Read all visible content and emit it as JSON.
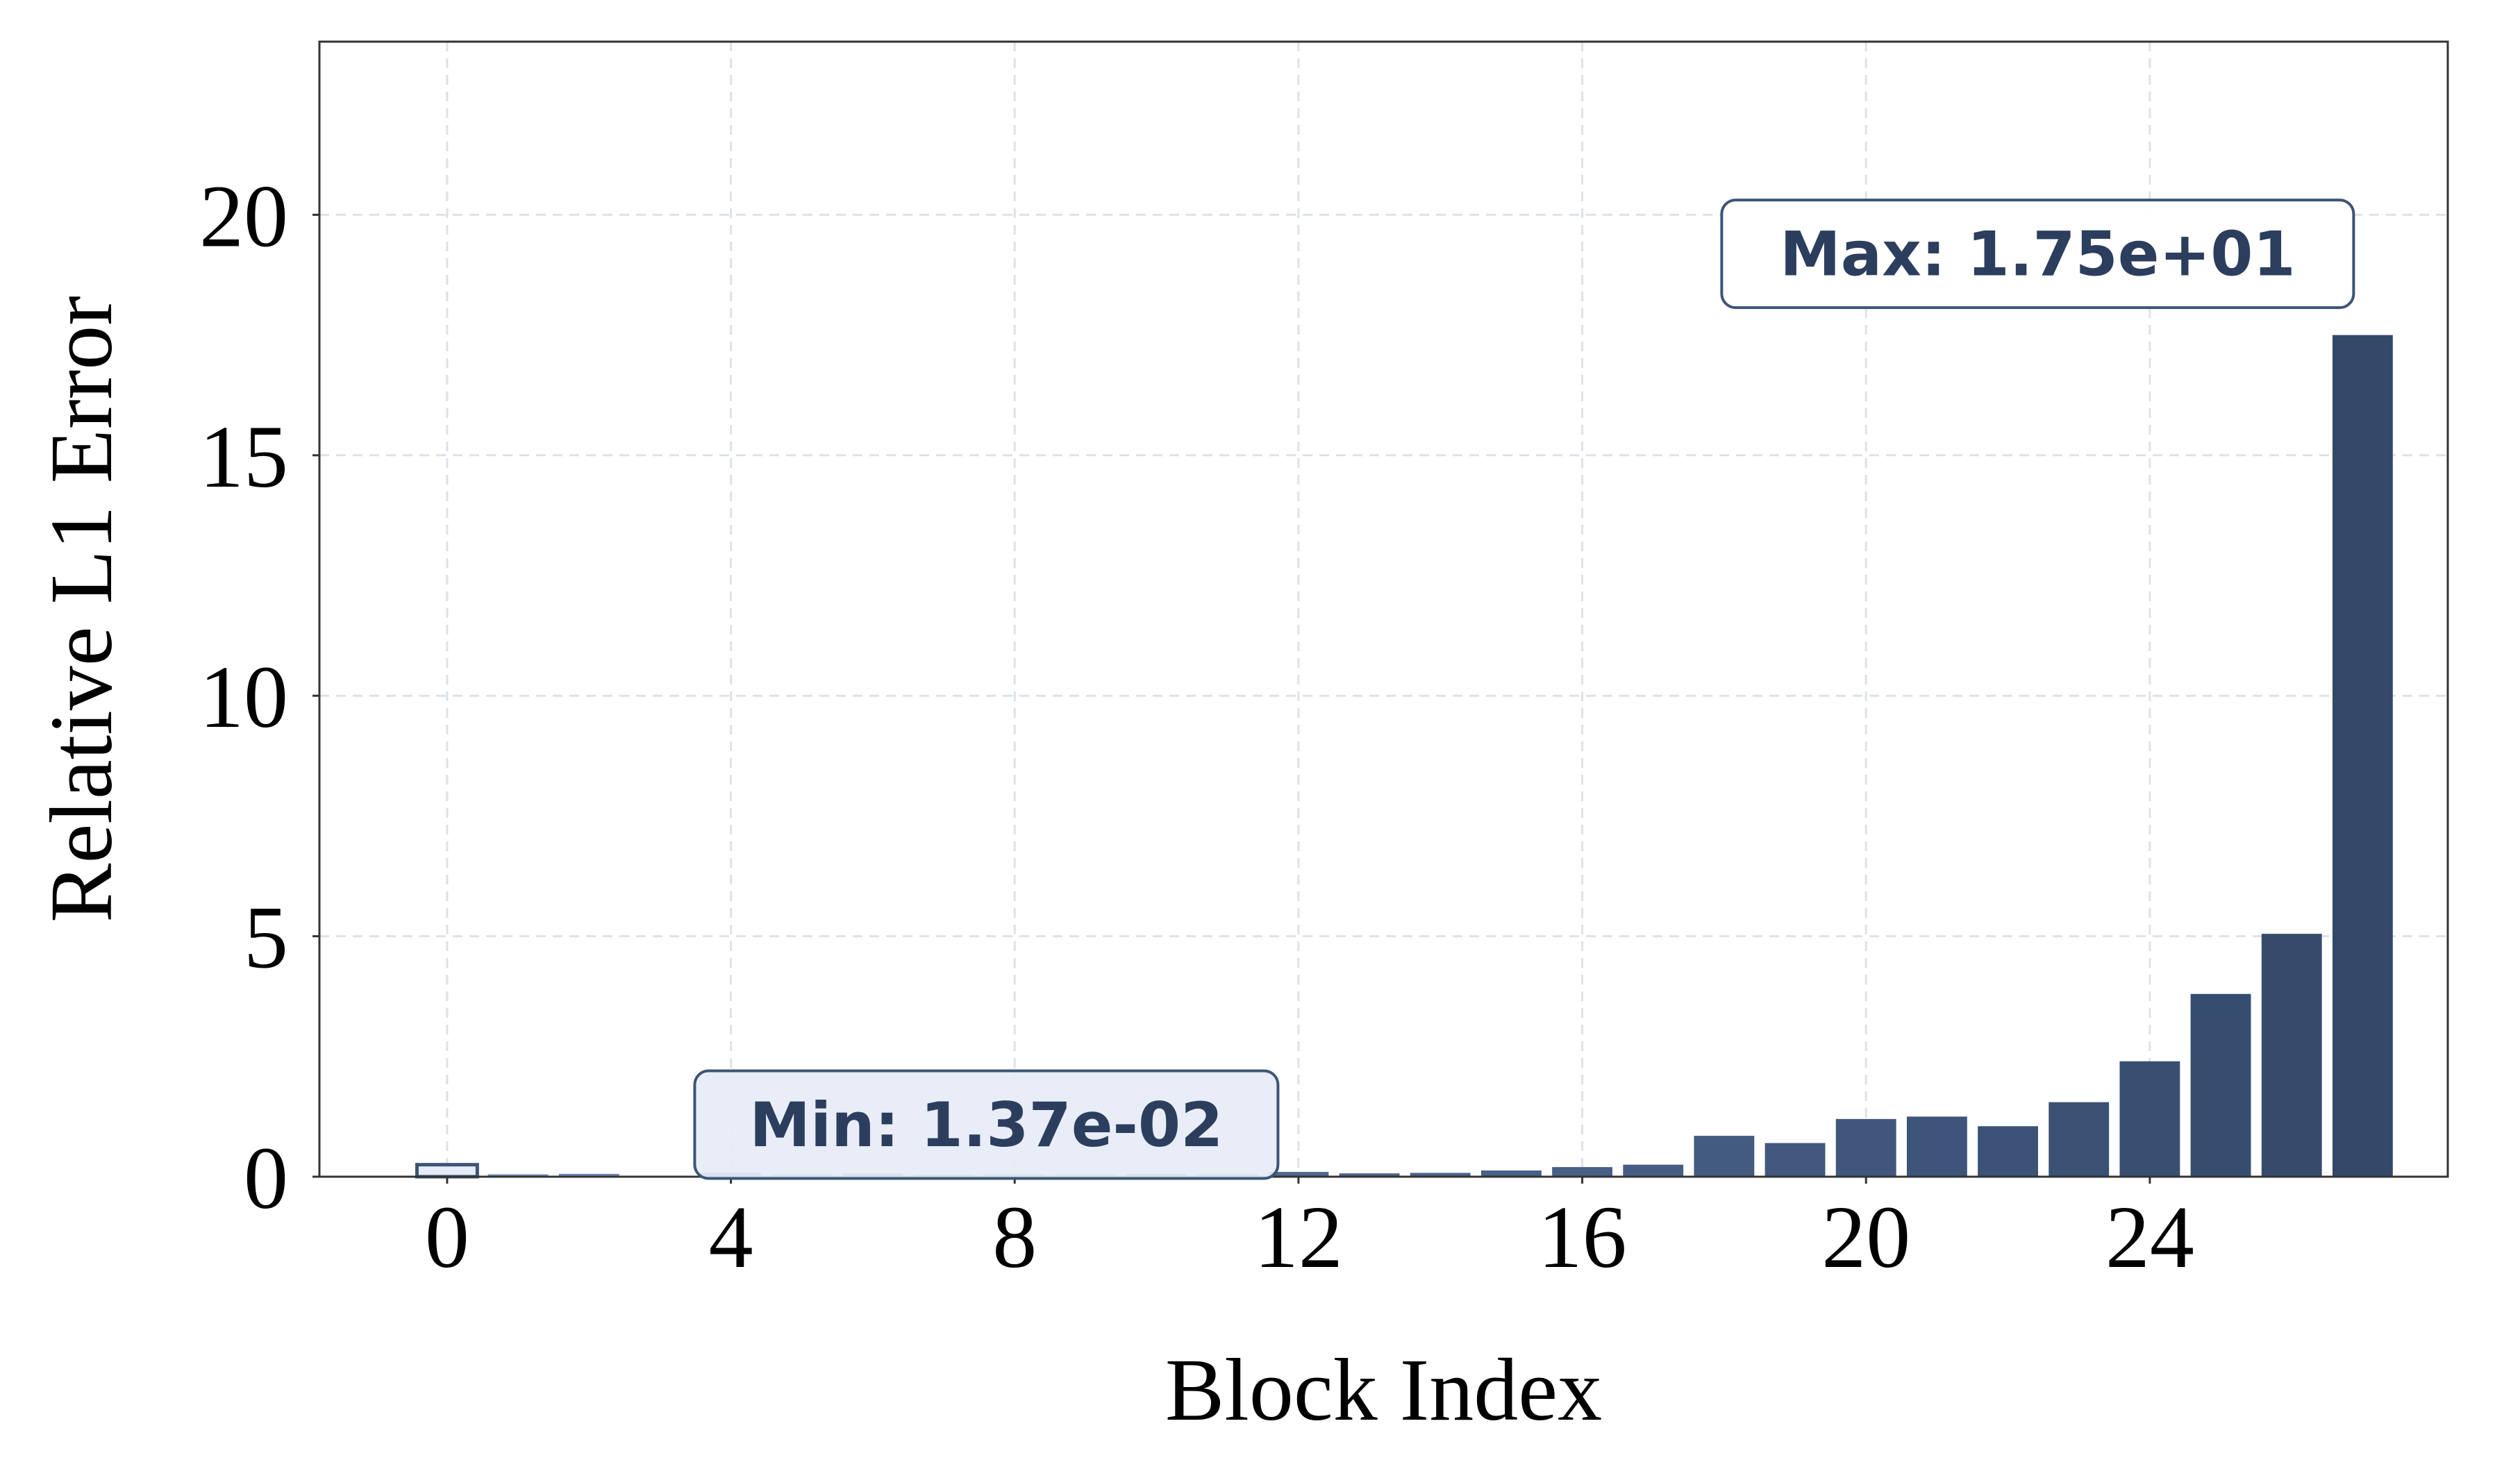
{
  "chart_data": {
    "type": "bar",
    "xlabel": "Block Index",
    "ylabel": "Relative L1 Error",
    "xlim": [
      -1.8,
      28.2
    ],
    "ylim": [
      0,
      23.6
    ],
    "xticks": [
      0,
      4,
      8,
      12,
      16,
      20,
      24
    ],
    "yticks": [
      0,
      5,
      10,
      15,
      20
    ],
    "grid": true,
    "x": [
      0,
      1,
      2,
      3,
      4,
      5,
      6,
      7,
      8,
      9,
      10,
      11,
      12,
      13,
      14,
      15,
      16,
      17,
      18,
      19,
      20,
      21,
      22,
      23,
      24,
      25,
      26,
      27
    ],
    "values": [
      0.25,
      0.05,
      0.06,
      0.0137,
      0.08,
      0.05,
      0.07,
      0.04,
      0.05,
      0.05,
      0.06,
      0.05,
      0.1,
      0.07,
      0.08,
      0.13,
      0.2,
      0.25,
      0.85,
      0.7,
      1.2,
      1.25,
      1.05,
      1.55,
      2.4,
      3.8,
      5.05,
      17.5
    ],
    "colors": {
      "low": "#7d9bd0",
      "high": "#34496a",
      "min_fill": "#e6ecf7",
      "annot_text": "#2c3e5e",
      "annot_border": "#3c5577"
    },
    "annotations": [
      {
        "kind": "min",
        "text": "Min: 1.37e-02",
        "index": 3
      },
      {
        "kind": "max",
        "text": "Max: 1.75e+01",
        "index": 27
      }
    ]
  }
}
